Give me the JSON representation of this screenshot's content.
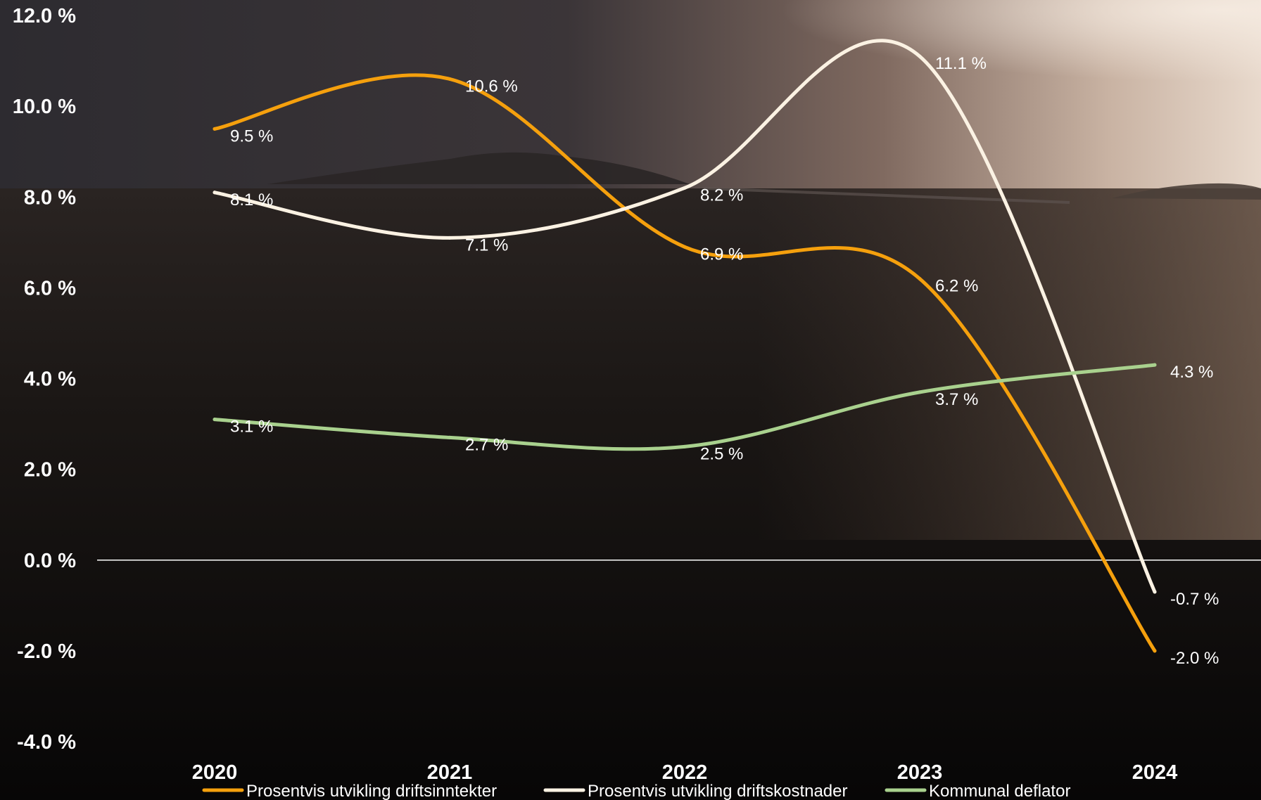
{
  "chart_data": {
    "type": "line",
    "categories": [
      "2020",
      "2021",
      "2022",
      "2023",
      "2024"
    ],
    "ylim": [
      -4.0,
      12.0
    ],
    "yticks": [
      -4.0,
      -2.0,
      0.0,
      2.0,
      4.0,
      6.0,
      8.0,
      10.0,
      12.0
    ],
    "ytick_labels": [
      "-4.0 %",
      "-2.0 %",
      "0.0 %",
      "2.0 %",
      "4.0 %",
      "6.0 %",
      "8.0 %",
      "10.0 %",
      "12.0 %"
    ],
    "grid": false,
    "zero_line": true,
    "smooth": true,
    "legend_position": "bottom",
    "series": [
      {
        "name": "Prosentvis utvikling driftsinntekter",
        "color": "#f5a00d",
        "values": [
          9.5,
          10.6,
          6.9,
          6.2,
          -2.0
        ],
        "labels": [
          "9.5 %",
          "10.6 %",
          "6.9 %",
          "6.2 %",
          "-2.0 %"
        ]
      },
      {
        "name": "Prosentvis utvikling driftskostnader",
        "color": "#fbf2e3",
        "values": [
          8.1,
          7.1,
          8.2,
          11.1,
          -0.7
        ],
        "labels": [
          "8.1 %",
          "7.1 %",
          "8.2 %",
          "11.1 %",
          "-0.7 %"
        ]
      },
      {
        "name": "Kommunal deflator",
        "color": "#a9d18e",
        "values": [
          3.1,
          2.7,
          2.5,
          3.7,
          4.3
        ],
        "labels": [
          "3.1 %",
          "2.7 %",
          "2.5 %",
          "3.7 %",
          "4.3 %"
        ]
      }
    ]
  }
}
